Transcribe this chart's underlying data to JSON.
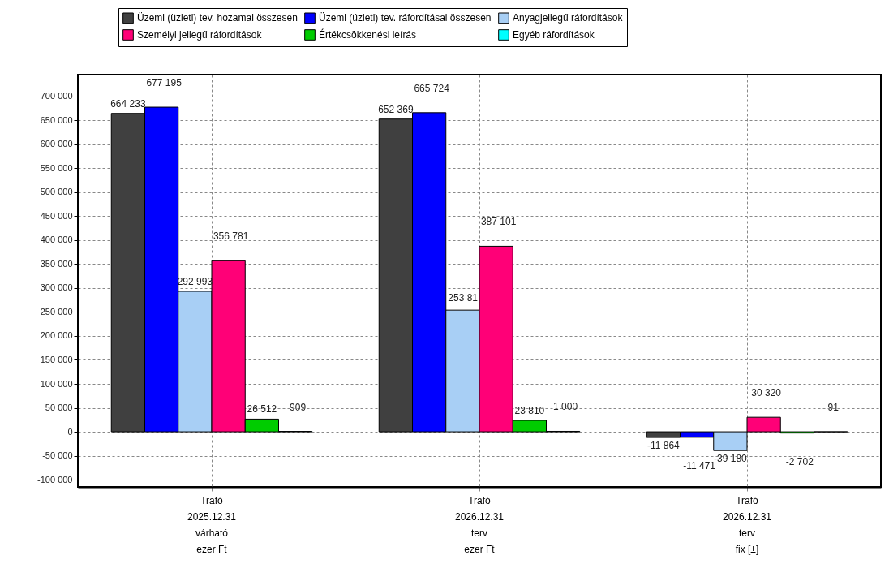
{
  "chart_data": {
    "type": "bar",
    "categories": [
      "Trafó\n2025.12.31\nvárható\nezer Ft",
      "Trafó\n2026.12.31\nterv\nezer Ft",
      "Trafó\n2026.12.31\nterv\nfix [±]"
    ],
    "series": [
      {
        "name": "Üzemi (üzleti) tev. hozamai összesen",
        "color": "#404040",
        "values": [
          664233,
          652369,
          -11864
        ],
        "value_labels": [
          "664 233",
          "652 369",
          "-11 864"
        ]
      },
      {
        "name": "Üzemi (üzleti) tev. ráfordításai összesen",
        "color": "#0000ff",
        "values": [
          677195,
          665724,
          -11471
        ],
        "value_labels": [
          "677 195",
          "665 724",
          "-11 471"
        ]
      },
      {
        "name": "Anyagjellegű ráfordítások",
        "color": "#a8cff5",
        "values": [
          292993,
          253810,
          -39180
        ],
        "value_labels": [
          "292 993",
          null,
          "-39 180"
        ]
      },
      {
        "name": "Személyi jellegű ráfordítások",
        "color": "#ff0077",
        "values": [
          356781,
          387101,
          30320
        ],
        "value_labels": [
          "356 781",
          "387 101",
          "30 320"
        ]
      },
      {
        "name": "Értékcsökkenési leírás",
        "color": "#00cc00",
        "values": [
          26512,
          23810,
          -2702
        ],
        "value_labels": [
          "26 512",
          "23 810",
          "-2 702"
        ]
      },
      {
        "name": "Egyéb ráfordítások",
        "color": "#00ffff",
        "values": [
          909,
          1000,
          91
        ],
        "value_labels": [
          "909",
          "1 000",
          "91"
        ]
      }
    ],
    "annotations": [
      {
        "text": "253 81",
        "x": "Trafó\n2026.12.31\nterv\nezer Ft",
        "y": 253810
      }
    ],
    "ylim": [
      -115000,
      745000
    ],
    "yticks": [
      {
        "value": -100000,
        "label": "-100 000"
      },
      {
        "value": -50000,
        "label": "-50 000"
      },
      0,
      {
        "value": 50000,
        "label": "50 000"
      },
      {
        "value": 100000,
        "label": "100 000"
      },
      {
        "value": 150000,
        "label": "150 000"
      },
      {
        "value": 200000,
        "label": "200 000"
      },
      {
        "value": 250000,
        "label": "250 000"
      },
      {
        "value": 300000,
        "label": "300 000"
      },
      {
        "value": 350000,
        "label": "350 000"
      },
      {
        "value": 400000,
        "label": "400 000"
      },
      {
        "value": 450000,
        "label": "450 000"
      },
      {
        "value": 500000,
        "label": "500 000"
      },
      {
        "value": 550000,
        "label": "550 000"
      },
      {
        "value": 600000,
        "label": "600 000"
      },
      {
        "value": 650000,
        "label": "650 000"
      },
      {
        "value": 700000,
        "label": "700 000"
      }
    ],
    "grid": true,
    "legend": "top"
  }
}
